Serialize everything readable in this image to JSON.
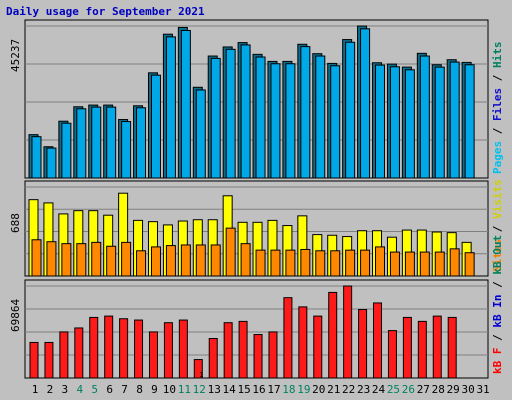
{
  "chart_data": [
    {
      "type": "bar",
      "panel": "top",
      "title": "Daily usage for September 2021",
      "ymax_label": "45237",
      "ylim": [
        0,
        45237
      ],
      "grid": true,
      "categories": [
        "1",
        "2",
        "3",
        "4",
        "5",
        "6",
        "7",
        "8",
        "9",
        "10",
        "11",
        "12",
        "13",
        "14",
        "15",
        "16",
        "17",
        "18",
        "19",
        "20",
        "21",
        "22",
        "23",
        "24",
        "25",
        "26",
        "27",
        "28",
        "29",
        "30",
        "31"
      ],
      "legend_right": [
        {
          "text": "Pages",
          "color": "#00c0f0"
        },
        {
          "text": "Files",
          "color": "#1010d0"
        },
        {
          "text": "Hits",
          "color": "#008060"
        }
      ],
      "series": [
        {
          "name": "Hits",
          "color": "#0b6e8c",
          "values": [
            12900,
            9300,
            16900,
            21200,
            21700,
            21700,
            17400,
            21500,
            31300,
            42800,
            44800,
            27000,
            36300,
            39000,
            40300,
            36800,
            34700,
            34700,
            39800,
            37000,
            34100,
            41200,
            45237,
            34300,
            33900,
            33000,
            37100,
            33700,
            35200,
            34400,
            null
          ]
        },
        {
          "name": "Files",
          "color": "#00a8e8",
          "values": [
            12300,
            8900,
            16300,
            20600,
            21100,
            21100,
            16800,
            20900,
            30600,
            42000,
            43900,
            26200,
            35600,
            38300,
            39600,
            36000,
            34000,
            34000,
            39100,
            36300,
            33400,
            40400,
            44400,
            33600,
            33100,
            32200,
            36300,
            33000,
            34500,
            33700,
            null
          ]
        }
      ]
    },
    {
      "type": "bar",
      "panel": "middle",
      "ymax_label": "688",
      "ylim": [
        0,
        688
      ],
      "grid": true,
      "categories": [
        "1",
        "2",
        "3",
        "4",
        "5",
        "6",
        "7",
        "8",
        "9",
        "10",
        "11",
        "12",
        "13",
        "14",
        "15",
        "16",
        "17",
        "18",
        "19",
        "20",
        "21",
        "22",
        "23",
        "24",
        "25",
        "26",
        "27",
        "28",
        "29",
        "30",
        "31"
      ],
      "legend_right": [
        {
          "text": "Sites",
          "color": "#f08000"
        },
        {
          "text": "Visits",
          "color": "#d0d000"
        }
      ],
      "series": [
        {
          "name": "Visits",
          "color": "#ffff00",
          "values": [
            590,
            565,
            480,
            505,
            505,
            470,
            640,
            430,
            420,
            395,
            425,
            435,
            435,
            620,
            415,
            415,
            430,
            390,
            465,
            320,
            315,
            305,
            350,
            350,
            300,
            355,
            355,
            340,
            335,
            260,
            null
          ]
        },
        {
          "name": "Sites",
          "color": "#ff8800",
          "values": [
            280,
            265,
            250,
            250,
            260,
            230,
            260,
            195,
            225,
            235,
            240,
            240,
            240,
            370,
            250,
            200,
            200,
            200,
            205,
            195,
            195,
            200,
            200,
            225,
            185,
            185,
            185,
            185,
            210,
            180,
            null
          ]
        }
      ]
    },
    {
      "type": "bar",
      "panel": "bottom",
      "ymax_label": "69864",
      "ylim": [
        0,
        69864
      ],
      "grid": true,
      "categories": [
        "1",
        "2",
        "3",
        "4",
        "5",
        "6",
        "7",
        "8",
        "9",
        "10",
        "11",
        "12",
        "13",
        "14",
        "15",
        "16",
        "17",
        "18",
        "19",
        "20",
        "21",
        "22",
        "23",
        "24",
        "25",
        "26",
        "27",
        "28",
        "29",
        "30",
        "31"
      ],
      "legend_right": [
        {
          "text": "kB F",
          "color": "#ff0000"
        },
        {
          "text": "kB In",
          "color": "#0000d0"
        },
        {
          "text": "kB Out",
          "color": "#008060"
        }
      ],
      "series": [
        {
          "name": "kB F",
          "color": "#ff1a1a",
          "values": [
            27000,
            27000,
            35000,
            38000,
            46000,
            47000,
            45000,
            44000,
            35000,
            42000,
            44000,
            14000,
            30000,
            42000,
            43000,
            33000,
            35000,
            61000,
            54000,
            47000,
            65000,
            69864,
            52000,
            57000,
            36000,
            46000,
            43000,
            47000,
            46000,
            null,
            null
          ]
        }
      ],
      "annotations": [
        "1"
      ]
    }
  ],
  "x_axis": {
    "labels": [
      "1",
      "2",
      "3",
      "4",
      "5",
      "6",
      "7",
      "8",
      "9",
      "10",
      "11",
      "12",
      "13",
      "14",
      "15",
      "16",
      "17",
      "18",
      "19",
      "20",
      "21",
      "22",
      "23",
      "24",
      "25",
      "26",
      "27",
      "28",
      "29",
      "30",
      "31"
    ],
    "weekend_days": [
      "4",
      "5",
      "11",
      "12",
      "18",
      "19",
      "25",
      "26"
    ],
    "weekday_color": "#000000",
    "weekend_color": "#008060"
  },
  "colors": {
    "frame": "#c0c0c0",
    "panel": "#c0c0c0",
    "grid": "#808080",
    "title": "#0000c0"
  }
}
